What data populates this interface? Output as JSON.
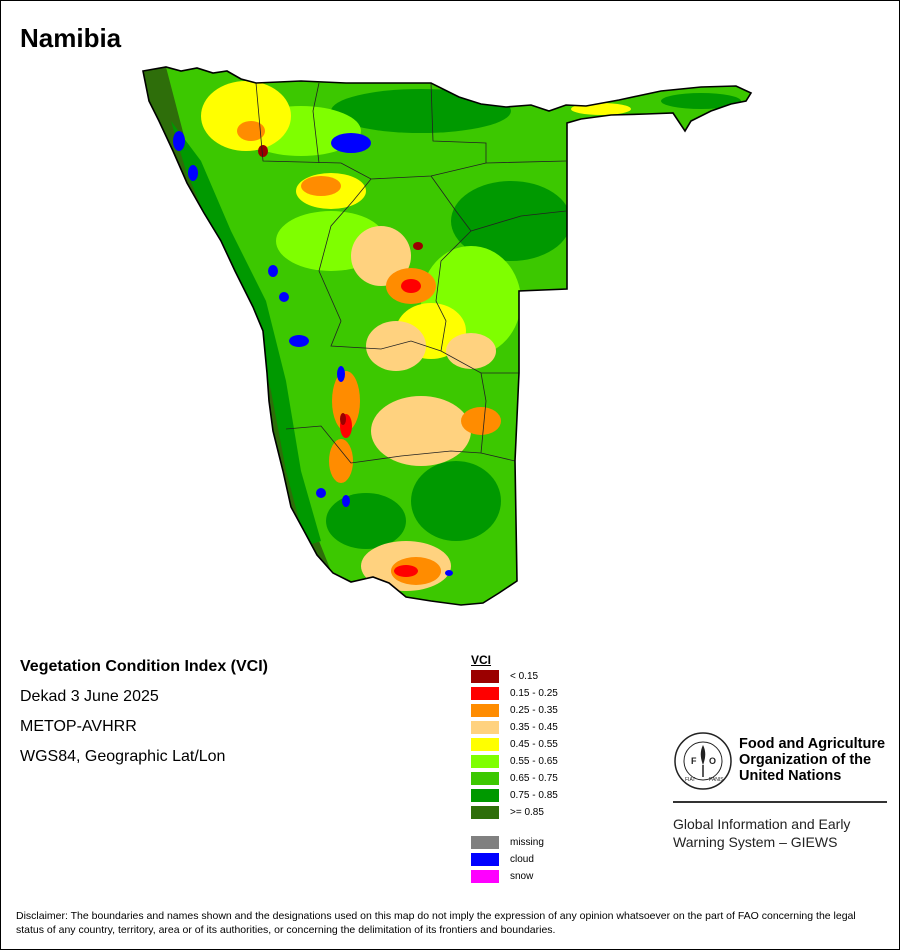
{
  "title": "Namibia",
  "info": {
    "product": "Vegetation Condition Index (VCI)",
    "period": "Dekad 3 June 2025",
    "sensor": "METOP-AVHRR",
    "projection": "WGS84, Geographic Lat/Lon"
  },
  "legend": {
    "title": "VCI",
    "classes": [
      {
        "label": "< 0.15",
        "color": "#9b0000"
      },
      {
        "label": "0.15 - 0.25",
        "color": "#ff0000"
      },
      {
        "label": "0.25 - 0.35",
        "color": "#ff8c00"
      },
      {
        "label": "0.35 - 0.45",
        "color": "#ffd27f"
      },
      {
        "label": "0.45 - 0.55",
        "color": "#ffff00"
      },
      {
        "label": "0.55 - 0.65",
        "color": "#7fff00"
      },
      {
        "label": "0.65 - 0.75",
        "color": "#3cc800"
      },
      {
        "label": "0.75 - 0.85",
        "color": "#009900"
      },
      {
        "label": ">= 0.85",
        "color": "#2e6e0a"
      }
    ],
    "special": [
      {
        "label": "missing",
        "color": "#808080"
      },
      {
        "label": "cloud",
        "color": "#0000ff"
      },
      {
        "label": "snow",
        "color": "#ff00ff"
      }
    ]
  },
  "org": {
    "name": "Food and Agriculture Organization of the United Nations",
    "logo_text": "FAO",
    "logo_motto": "FIAT PANIS",
    "system": "Global Information and Early Warning System – GIEWS"
  },
  "disclaimer": "Disclaimer: The boundaries and names shown and the designations used on this map do not imply the expression of any opinion whatsoever on the part of FAO concerning the legal status of any country, territory, area or of its authorities, or concerning the delimitation of its frontiers and boundaries."
}
